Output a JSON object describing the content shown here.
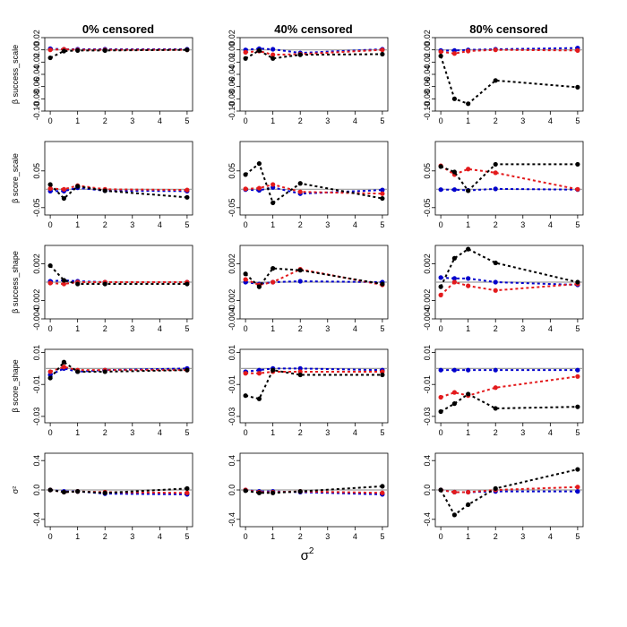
{
  "figure": {
    "column_titles": [
      "0% censored",
      "40% censored",
      "80% censored"
    ],
    "row_labels": [
      "β success_scale",
      "β score_scale",
      "β success_shape",
      "β score_shape",
      "σ²"
    ],
    "xlabel": "σ²",
    "xlabel_base": "σ",
    "xlabel_sup": "2",
    "colors": {
      "black": "#000000",
      "red": "#e31a1c",
      "blue": "#0000cc",
      "reference": "#a0a0a0"
    }
  },
  "chart_data": {
    "type": "line",
    "x": [
      0,
      0.5,
      1,
      2,
      5
    ],
    "x_ticks": [
      "0",
      "1",
      "2",
      "3",
      "4",
      "5"
    ],
    "xlim": [
      0,
      5
    ],
    "series_names": [
      "black",
      "red",
      "blue"
    ],
    "rows": [
      {
        "ylabel": "β success_scale",
        "ylim": [
          -0.1,
          0.02
        ],
        "y_ticks": [
          "-0.10",
          "-0.08",
          "-0.06",
          "-0.04",
          "-0.02",
          "0.00",
          "0.02"
        ],
        "panels": [
          {
            "title": "0% censored",
            "series": [
              {
                "name": "black",
                "values": [
                  -0.013,
                  -0.002,
                  -0.001,
                  -0.001,
                  0.0
                ]
              },
              {
                "name": "red",
                "values": [
                  0.0,
                  0.001,
                  0.0,
                  0.0,
                  0.0
                ]
              },
              {
                "name": "blue",
                "values": [
                  0.002,
                  0.001,
                  0.001,
                  0.001,
                  0.001
                ]
              }
            ]
          },
          {
            "title": "40% censored",
            "series": [
              {
                "name": "black",
                "values": [
                  -0.014,
                  -0.001,
                  -0.014,
                  -0.008,
                  -0.007
                ]
              },
              {
                "name": "red",
                "values": [
                  -0.004,
                  -0.002,
                  -0.008,
                  -0.007,
                  0.0
                ]
              },
              {
                "name": "blue",
                "values": [
                  0.0,
                  0.002,
                  0.001,
                  -0.005,
                  0.001
                ]
              }
            ]
          },
          {
            "title": "80% censored",
            "series": [
              {
                "name": "black",
                "values": [
                  -0.01,
                  -0.08,
                  -0.088,
                  -0.05,
                  -0.061
                ]
              },
              {
                "name": "red",
                "values": [
                  -0.003,
                  -0.006,
                  -0.002,
                  0.0,
                  -0.001
                ]
              },
              {
                "name": "blue",
                "values": [
                  -0.001,
                  -0.001,
                  0.0,
                  0.001,
                  0.003
                ]
              }
            ]
          }
        ]
      },
      {
        "ylabel": "β score_scale",
        "ylim": [
          -0.07,
          0.13
        ],
        "y_ticks": [
          "-0.05",
          "0.05"
        ],
        "y_tick_values": [
          -0.05,
          0.05
        ],
        "panels": [
          {
            "title": "0% censored",
            "series": [
              {
                "name": "black",
                "values": [
                  0.013,
                  -0.025,
                  0.008,
                  -0.004,
                  -0.022
                ]
              },
              {
                "name": "red",
                "values": [
                  0.002,
                  0.0,
                  0.01,
                  0.0,
                  -0.002
                ]
              },
              {
                "name": "blue",
                "values": [
                  -0.005,
                  -0.005,
                  0.004,
                  -0.004,
                  -0.005
                ]
              }
            ]
          },
          {
            "title": "40% censored",
            "series": [
              {
                "name": "black",
                "values": [
                  0.04,
                  0.07,
                  -0.037,
                  0.016,
                  -0.025
                ]
              },
              {
                "name": "red",
                "values": [
                  0.001,
                  0.003,
                  0.013,
                  -0.007,
                  -0.012
                ]
              },
              {
                "name": "blue",
                "values": [
                  -0.001,
                  -0.003,
                  0.005,
                  -0.012,
                  -0.002
                ]
              }
            ]
          },
          {
            "title": "80% censored",
            "series": [
              {
                "name": "black",
                "values": [
                  0.062,
                  0.047,
                  -0.004,
                  0.068,
                  0.068
                ]
              },
              {
                "name": "red",
                "values": [
                  0.064,
                  0.04,
                  0.055,
                  0.045,
                  0.0
                ]
              },
              {
                "name": "blue",
                "values": [
                  -0.001,
                  -0.001,
                  -0.003,
                  0.001,
                  -0.001
                ]
              }
            ]
          }
        ]
      },
      {
        "ylabel": "β success_shape",
        "ylim": [
          -0.004,
          0.004
        ],
        "y_ticks": [
          "-0.004",
          "-0.002",
          "0.002"
        ],
        "y_tick_values": [
          -0.004,
          -0.002,
          0.002
        ],
        "panels": [
          {
            "title": "0% censored",
            "series": [
              {
                "name": "black",
                "values": [
                  0.0018,
                  0.0002,
                  -0.0002,
                  -0.0002,
                  -0.0002
                ]
              },
              {
                "name": "red",
                "values": [
                  -0.0001,
                  -0.0002,
                  0.0,
                  0.0,
                  0.0
                ]
              },
              {
                "name": "blue",
                "values": [
                  0.0001,
                  0.0002,
                  0.0001,
                  0.0,
                  0.0
                ]
              }
            ]
          },
          {
            "title": "40% censored",
            "series": [
              {
                "name": "black",
                "values": [
                  0.0009,
                  -0.0005,
                  0.0015,
                  0.0013,
                  -0.0002
                ]
              },
              {
                "name": "red",
                "values": [
                  0.0003,
                  -0.0003,
                  0.0,
                  0.0014,
                  -0.0003
                ]
              },
              {
                "name": "blue",
                "values": [
                  0.0,
                  -0.0002,
                  0.0,
                  0.0001,
                  0.0
                ]
              }
            ]
          },
          {
            "title": "80% censored",
            "series": [
              {
                "name": "black",
                "values": [
                  -0.0005,
                  0.0026,
                  0.0036,
                  0.0021,
                  0.0
                ]
              },
              {
                "name": "red",
                "values": [
                  -0.0014,
                  0.0,
                  -0.0004,
                  -0.0009,
                  -0.0002
                ]
              },
              {
                "name": "blue",
                "values": [
                  0.0005,
                  0.0004,
                  0.0004,
                  0.0,
                  -0.0003
                ]
              }
            ]
          }
        ]
      },
      {
        "ylabel": "β score_shape",
        "ylim": [
          -0.034,
          0.012
        ],
        "y_ticks": [
          "-0.03",
          "-0.01",
          "0.01"
        ],
        "y_tick_values": [
          -0.03,
          -0.01,
          0.01
        ],
        "panels": [
          {
            "title": "0% censored",
            "series": [
              {
                "name": "black",
                "values": [
                  -0.006,
                  0.004,
                  -0.002,
                  -0.002,
                  -0.001
                ]
              },
              {
                "name": "red",
                "values": [
                  -0.002,
                  0.001,
                  -0.001,
                  -0.001,
                  -0.001
                ]
              },
              {
                "name": "blue",
                "values": [
                  -0.004,
                  0.0,
                  -0.002,
                  -0.001,
                  0.0
                ]
              }
            ]
          },
          {
            "title": "40% censored",
            "series": [
              {
                "name": "black",
                "values": [
                  -0.017,
                  -0.019,
                  -0.001,
                  -0.004,
                  -0.004
                ]
              },
              {
                "name": "red",
                "values": [
                  -0.003,
                  -0.003,
                  -0.002,
                  -0.002,
                  -0.002
                ]
              },
              {
                "name": "blue",
                "values": [
                  -0.002,
                  -0.001,
                  0.0,
                  0.0,
                  -0.001
                ]
              }
            ]
          },
          {
            "title": "80% censored",
            "series": [
              {
                "name": "black",
                "values": [
                  -0.027,
                  -0.022,
                  -0.016,
                  -0.025,
                  -0.024
                ]
              },
              {
                "name": "red",
                "values": [
                  -0.018,
                  -0.015,
                  -0.017,
                  -0.012,
                  -0.005
                ]
              },
              {
                "name": "blue",
                "values": [
                  -0.001,
                  -0.001,
                  -0.001,
                  -0.001,
                  -0.001
                ]
              }
            ]
          }
        ]
      },
      {
        "ylabel": "σ²",
        "ylim": [
          -0.5,
          0.5
        ],
        "y_ticks": [
          "-0.4",
          "0.0",
          "0.4"
        ],
        "y_tick_values": [
          -0.4,
          0.0,
          0.4
        ],
        "panels": [
          {
            "title": "0% censored",
            "series": [
              {
                "name": "black",
                "values": [
                  0.0,
                  -0.03,
                  -0.02,
                  -0.04,
                  0.02
                ]
              },
              {
                "name": "red",
                "values": [
                  0.0,
                  -0.03,
                  -0.02,
                  -0.03,
                  -0.04
                ]
              },
              {
                "name": "blue",
                "values": [
                  0.0,
                  -0.02,
                  -0.02,
                  -0.05,
                  -0.06
                ]
              }
            ]
          },
          {
            "title": "40% censored",
            "series": [
              {
                "name": "black",
                "values": [
                  -0.01,
                  -0.04,
                  -0.04,
                  -0.02,
                  0.05
                ]
              },
              {
                "name": "red",
                "values": [
                  0.0,
                  -0.03,
                  -0.03,
                  -0.02,
                  -0.04
                ]
              },
              {
                "name": "blue",
                "values": [
                  0.0,
                  -0.02,
                  -0.02,
                  -0.03,
                  -0.06
                ]
              }
            ]
          },
          {
            "title": "80% censored",
            "series": [
              {
                "name": "black",
                "values": [
                  0.0,
                  -0.34,
                  -0.2,
                  0.02,
                  0.28
                ]
              },
              {
                "name": "red",
                "values": [
                  0.0,
                  -0.03,
                  -0.03,
                  0.0,
                  0.04
                ]
              },
              {
                "name": "blue",
                "values": [
                  0.0,
                  -0.03,
                  -0.03,
                  -0.02,
                  -0.02
                ]
              }
            ]
          }
        ]
      }
    ]
  }
}
